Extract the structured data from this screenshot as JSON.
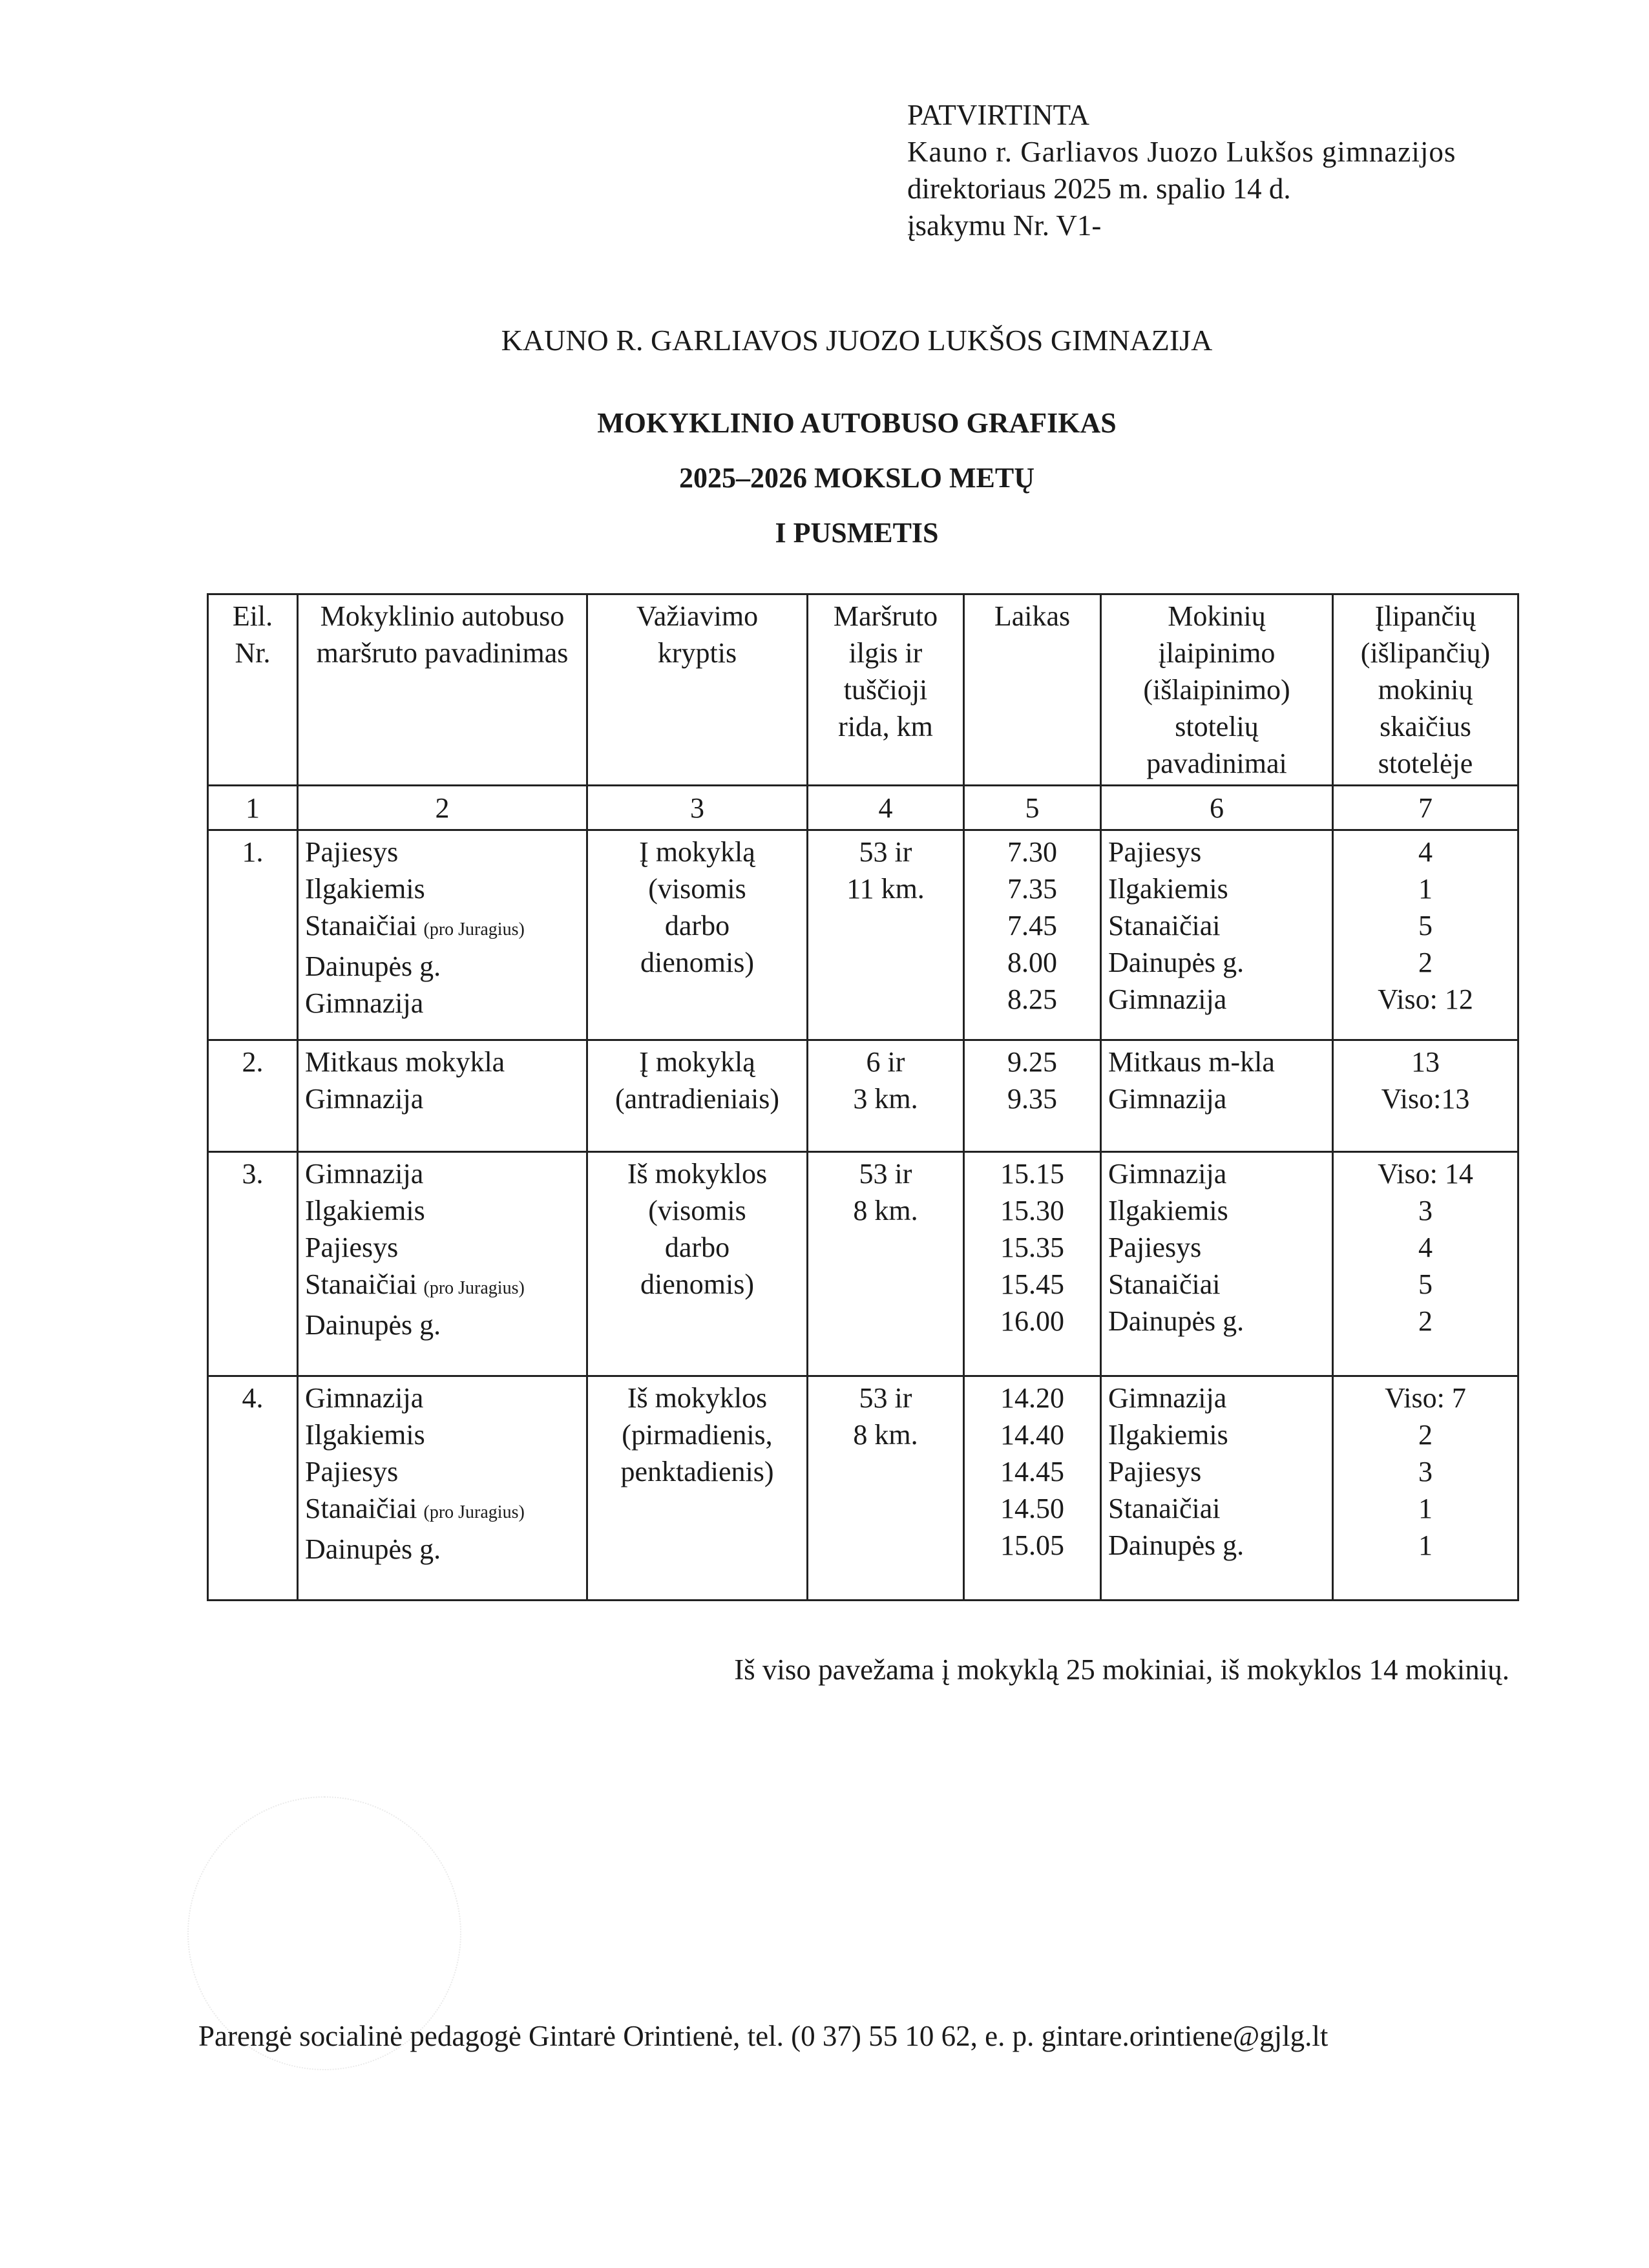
{
  "approval": {
    "heading": "PATVIRTINTA",
    "line1": "Kauno r. Garliavos Juozo Lukšos gimnazijos",
    "line2": "direktoriaus 2025 m. spalio 14 d.",
    "line3": "įsakymu Nr. V1-"
  },
  "school_name": "KAUNO R. GARLIAVOS JUOZO LUKŠOS GIMNAZIJA",
  "titles": [
    "MOKYKLINIO AUTOBUSO GRAFIKAS",
    "2025–2026 MOKSLO METŲ",
    "I PUSMETIS"
  ],
  "table": {
    "headers": [
      "Eil. Nr.",
      "Mokyklinio autobuso maršruto pavadinimas",
      "Važiavimo kryptis",
      "Maršruto ilgis ir tuščioji rida, km",
      "Laikas",
      "Mokinių įlaipinimo (išlaipinimo) stotelių pavadinimai",
      "Įlipančių (išlipančių) mokinių skaičius stotelėje"
    ],
    "column_numbers": [
      "1",
      "2",
      "3",
      "4",
      "5",
      "6",
      "7"
    ],
    "rows": [
      {
        "nr": "1.",
        "route": [
          "Pajiesys",
          "Ilgakiemis",
          "Stanaičiai",
          "Dainupės g.",
          "Gimnazija"
        ],
        "route_note": "(pro Juragius)",
        "direction": [
          "Į mokyklą",
          "(visomis",
          "darbo",
          "dienomis)"
        ],
        "length": [
          "53 ir",
          "11 km."
        ],
        "times": [
          "7.30",
          "7.35",
          "7.45",
          "8.00",
          "8.25"
        ],
        "stops": [
          "Pajiesys",
          "Ilgakiemis",
          "Stanaičiai",
          "Dainupės g.",
          "Gimnazija"
        ],
        "counts": [
          "4",
          "1",
          "5",
          "2",
          "Viso: 12"
        ]
      },
      {
        "nr": "2.",
        "route": [
          "Mitkaus mokykla",
          "Gimnazija"
        ],
        "route_note": "",
        "direction": [
          "Į mokyklą",
          "(antradieniais)"
        ],
        "length": [
          "6 ir",
          "3 km."
        ],
        "times": [
          "9.25",
          "9.35"
        ],
        "stops": [
          "Mitkaus m-kla",
          "Gimnazija"
        ],
        "counts": [
          "13",
          "Viso:13"
        ]
      },
      {
        "nr": "3.",
        "route": [
          "Gimnazija",
          "Ilgakiemis",
          "Pajiesys",
          "Stanaičiai",
          "Dainupės g."
        ],
        "route_note": "(pro Juragius)",
        "direction": [
          "Iš mokyklos",
          "(visomis",
          "darbo",
          "dienomis)"
        ],
        "length": [
          "53 ir",
          "8 km."
        ],
        "times": [
          "15.15",
          "15.30",
          "15.35",
          "15.45",
          "16.00"
        ],
        "stops": [
          "Gimnazija",
          "Ilgakiemis",
          "Pajiesys",
          "Stanaičiai",
          "Dainupės g."
        ],
        "counts": [
          "Viso: 14",
          "3",
          "4",
          "5",
          "2"
        ]
      },
      {
        "nr": "4.",
        "route": [
          "Gimnazija",
          "Ilgakiemis",
          "Pajiesys",
          "Stanaičiai",
          "Dainupės g."
        ],
        "route_note": "(pro Juragius)",
        "direction": [
          "Iš mokyklos",
          "(pirmadienis,",
          "penktadienis)"
        ],
        "length": [
          "53 ir",
          "8 km."
        ],
        "times": [
          "14.20",
          "14.40",
          "14.45",
          "14.50",
          "15.05"
        ],
        "stops": [
          "Gimnazija",
          "Ilgakiemis",
          "Pajiesys",
          "Stanaičiai",
          "Dainupės g."
        ],
        "counts": [
          "Viso: 7",
          "2",
          "3",
          "1",
          "1"
        ]
      }
    ]
  },
  "summary": "Iš viso pavežama į mokyklą 25 mokiniai, iš mokyklos 14 mokinių.",
  "footer": "Parengė socialinė pedagogė Gintarė Orintienė, tel. (0 37) 55 10 62, e. p. gintare.orintiene@gjlg.lt"
}
